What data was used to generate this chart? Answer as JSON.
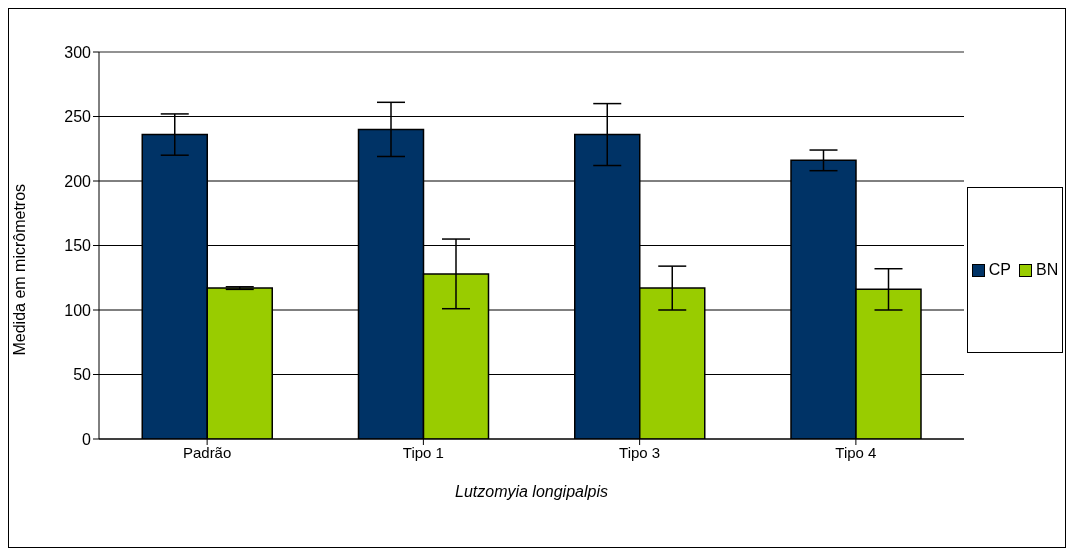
{
  "chart_data": {
    "type": "bar",
    "xlabel": "Lutzomyia longipalpis",
    "ylabel": "Medida em micrômetros",
    "categories": [
      "Padrão",
      "Tipo 1",
      "Tipo 3",
      "Tipo 4"
    ],
    "series": [
      {
        "name": "CP",
        "color": "#003366",
        "values": [
          236,
          240,
          236,
          216
        ],
        "errors": [
          16,
          21,
          24,
          8
        ]
      },
      {
        "name": "BN",
        "color": "#99cc00",
        "values": [
          117,
          128,
          117,
          116
        ],
        "errors": [
          1,
          27,
          17,
          16
        ]
      }
    ],
    "ylim": [
      0,
      300
    ],
    "yticks": [
      0,
      50,
      100,
      150,
      200,
      250,
      300
    ],
    "grid": "y",
    "legend": "right"
  }
}
